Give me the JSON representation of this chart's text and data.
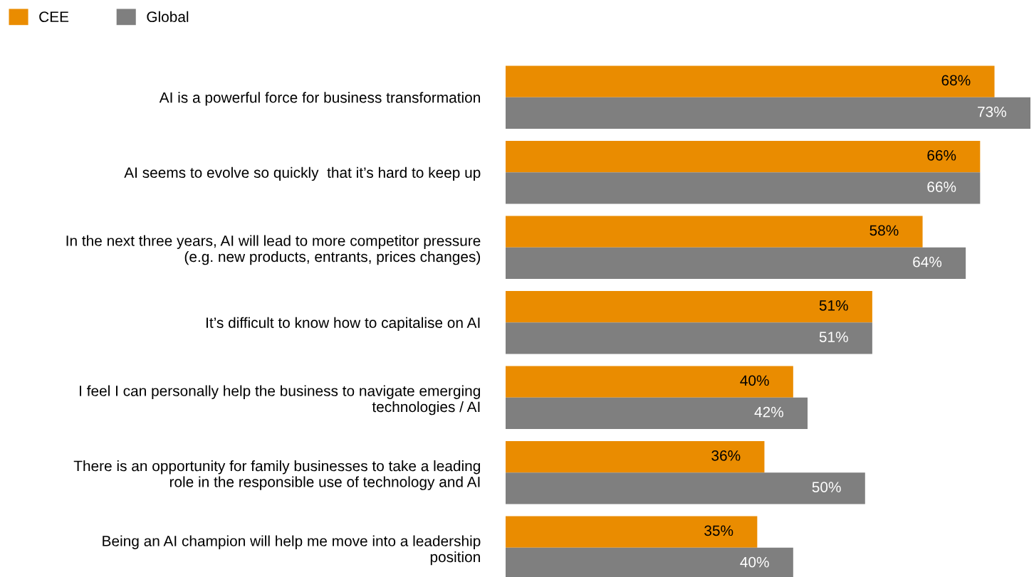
{
  "chart_data": {
    "type": "bar",
    "orientation": "horizontal",
    "legend": "top left",
    "grid": false,
    "categories": [
      "AI is a powerful force for business transformation",
      "AI seems to evolve so quickly  that it’s hard to keep up",
      "In the next three years, AI will lead to more competitor pressure\n(e.g. new products, entrants, prices changes)",
      "It’s difficult to know how to capitalise on AI",
      "I feel I can personally help the business to navigate emerging\ntechnologies / AI",
      "There is an opportunity for family businesses to take a leading\nrole in the responsible use of technology and AI",
      "Being an AI champion will help me move into a leadership\nposition"
    ],
    "series": [
      {
        "name": "CEE",
        "color": "#ea8c00",
        "values": [
          68,
          66,
          58,
          51,
          40,
          36,
          35
        ],
        "value_labels": [
          "68%",
          "66%",
          "58%",
          "51%",
          "40%",
          "36%",
          "35%"
        ]
      },
      {
        "name": "Global",
        "color": "#7f7f7f",
        "values": [
          73,
          66,
          64,
          51,
          42,
          50,
          40
        ],
        "value_labels": [
          "73%",
          "66%",
          "64%",
          "51%",
          "42%",
          "50%",
          "40%"
        ]
      }
    ]
  }
}
